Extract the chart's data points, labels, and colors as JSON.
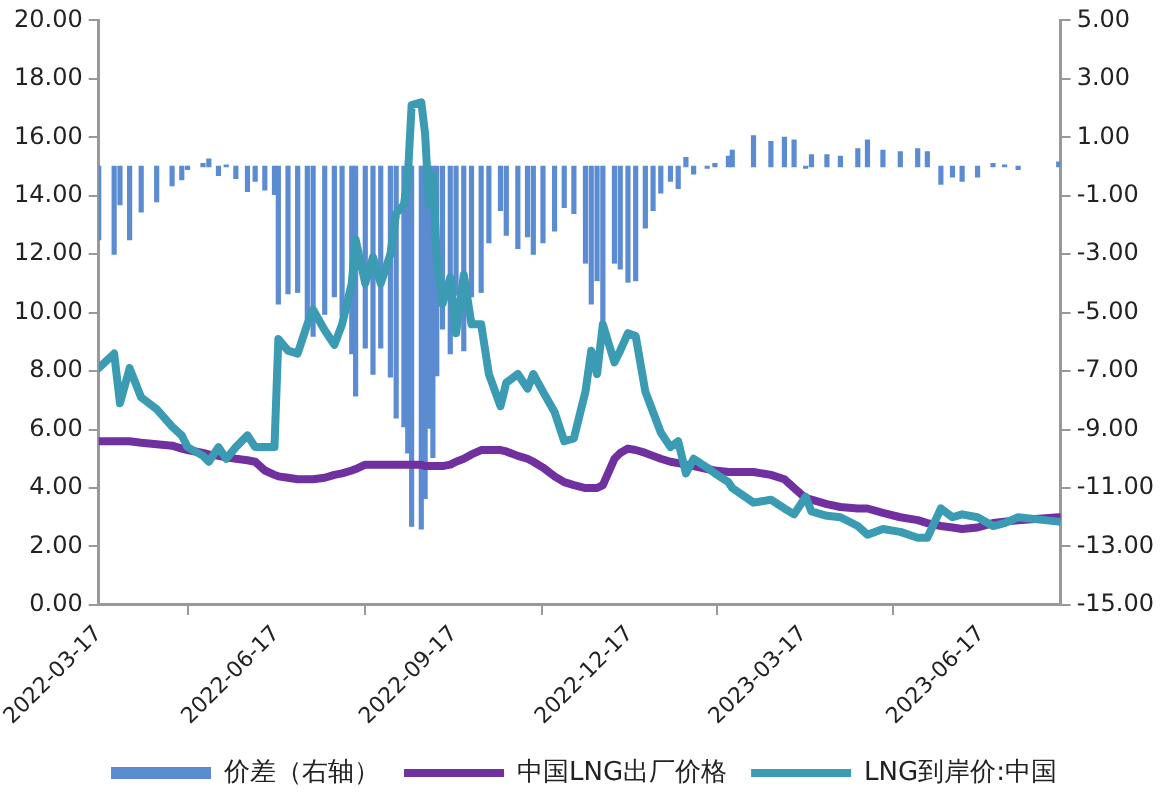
{
  "chart_data": {
    "type": "line",
    "x": [
      "2022-03-17",
      "2022-03-25",
      "2022-03-28",
      "2022-04-02",
      "2022-04-08",
      "2022-04-16",
      "2022-04-24",
      "2022-04-29",
      "2022-05-02",
      "2022-05-10",
      "2022-05-13",
      "2022-05-18",
      "2022-05-22",
      "2022-05-27",
      "2022-06-02",
      "2022-06-06",
      "2022-06-11",
      "2022-06-16",
      "2022-06-18",
      "2022-06-23",
      "2022-06-28",
      "2022-07-03",
      "2022-07-06",
      "2022-07-12",
      "2022-07-17",
      "2022-07-21",
      "2022-07-26",
      "2022-07-28",
      "2022-08-02",
      "2022-08-06",
      "2022-08-10",
      "2022-08-15",
      "2022-08-18",
      "2022-08-22",
      "2022-08-24",
      "2022-08-26",
      "2022-08-31",
      "2022-09-02",
      "2022-09-04",
      "2022-09-06",
      "2022-09-08",
      "2022-09-11",
      "2022-09-15",
      "2022-09-18",
      "2022-09-22",
      "2022-09-26",
      "2022-10-01",
      "2022-10-05",
      "2022-10-11",
      "2022-10-14",
      "2022-10-20",
      "2022-10-25",
      "2022-10-28",
      "2022-11-02",
      "2022-11-08",
      "2022-11-13",
      "2022-11-18",
      "2022-11-24",
      "2022-11-27",
      "2022-11-30",
      "2022-12-03",
      "2022-12-09",
      "2022-12-12",
      "2022-12-16",
      "2022-12-20",
      "2022-12-25",
      "2022-12-29",
      "2023-01-02",
      "2023-01-07",
      "2023-01-11",
      "2023-01-15",
      "2023-01-19",
      "2023-01-26",
      "2023-01-30",
      "2023-02-06",
      "2023-02-08",
      "2023-02-19",
      "2023-02-28",
      "2023-03-07",
      "2023-03-12",
      "2023-03-18",
      "2023-03-21",
      "2023-03-29",
      "2023-04-05",
      "2023-04-14",
      "2023-04-19",
      "2023-04-27",
      "2023-05-06",
      "2023-05-15",
      "2023-05-20",
      "2023-05-27",
      "2023-06-02",
      "2023-06-07",
      "2023-06-15",
      "2023-06-23",
      "2023-06-29",
      "2023-07-06",
      "2023-07-27"
    ],
    "series": [
      {
        "name": "价差（右轴）",
        "type": "bar",
        "axis": "y2",
        "color": "#5b8bd0",
        "values": [
          -2.5,
          -3.0,
          -1.3,
          -2.5,
          -1.55,
          -1.2,
          -0.65,
          -0.45,
          -0.1,
          0.1,
          0.25,
          -0.3,
          0.05,
          -0.4,
          -0.85,
          -0.5,
          -0.8,
          -0.95,
          -4.7,
          -4.35,
          -4.3,
          -5.3,
          -5.8,
          -5.05,
          -4.45,
          -5.1,
          -6.4,
          -7.85,
          -6.2,
          -7.1,
          -6.2,
          -7.2,
          -8.6,
          -8.9,
          -9.8,
          -12.3,
          -12.4,
          -11.35,
          -8.95,
          -9.95,
          -7.15,
          -5.55,
          -6.4,
          -4.4,
          -6.3,
          -4.45,
          -4.3,
          -2.6,
          -1.5,
          -2.35,
          -2.8,
          -2.4,
          -3.0,
          -2.6,
          -2.2,
          -1.4,
          -1.6,
          -3.3,
          -4.7,
          -3.9,
          -5.5,
          -3.3,
          -3.5,
          -3.95,
          -3.9,
          -2.1,
          -1.5,
          -0.9,
          -0.5,
          -0.75,
          0.3,
          -0.25,
          -0.05,
          0.1,
          0.35,
          0.55,
          1.05,
          0.85,
          1.0,
          0.9,
          -0.05,
          0.4,
          0.4,
          0.35,
          0.6,
          0.9,
          0.55,
          0.5,
          0.6,
          0.5,
          -0.6,
          -0.35,
          -0.5,
          -0.35,
          0.1,
          0.05,
          -0.1,
          0.15
        ]
      },
      {
        "name": "中国LNG出厂价格",
        "color": "#7030a0",
        "values": [
          5.6,
          5.6,
          5.6,
          5.6,
          5.55,
          5.5,
          5.45,
          5.35,
          5.3,
          5.2,
          5.15,
          5.1,
          5.05,
          5.0,
          4.95,
          4.9,
          4.6,
          4.45,
          4.4,
          4.35,
          4.3,
          4.3,
          4.3,
          4.35,
          4.45,
          4.5,
          4.6,
          4.65,
          4.8,
          4.8,
          4.8,
          4.8,
          4.8,
          4.8,
          4.8,
          4.8,
          4.8,
          4.75,
          4.75,
          4.75,
          4.75,
          4.75,
          4.8,
          4.9,
          5.0,
          5.15,
          5.3,
          5.3,
          5.3,
          5.25,
          5.1,
          5.0,
          4.9,
          4.7,
          4.4,
          4.2,
          4.1,
          4.0,
          4.0,
          4.0,
          4.1,
          5.0,
          5.2,
          5.35,
          5.3,
          5.2,
          5.1,
          5.0,
          4.9,
          4.85,
          4.8,
          4.75,
          4.65,
          4.6,
          4.55,
          4.55,
          4.55,
          4.45,
          4.3,
          4.0,
          3.65,
          3.6,
          3.45,
          3.35,
          3.3,
          3.3,
          3.15,
          3.0,
          2.9,
          2.8,
          2.7,
          2.65,
          2.6,
          2.65,
          2.8,
          2.85,
          2.9,
          3.0
        ]
      },
      {
        "name": "LNG到岸价:中国",
        "color": "#3a9bb2",
        "values": [
          8.1,
          8.6,
          6.9,
          8.1,
          7.1,
          6.7,
          6.1,
          5.8,
          5.4,
          5.1,
          4.9,
          5.4,
          5.0,
          5.4,
          5.8,
          5.4,
          5.4,
          5.4,
          9.1,
          8.7,
          8.6,
          9.6,
          10.1,
          9.4,
          8.9,
          9.6,
          11.0,
          12.5,
          11.0,
          11.9,
          11.0,
          12.0,
          13.4,
          13.7,
          14.6,
          17.1,
          17.2,
          16.1,
          13.7,
          14.7,
          11.9,
          10.3,
          11.2,
          9.3,
          11.3,
          9.6,
          9.6,
          7.9,
          6.8,
          7.6,
          7.9,
          7.4,
          7.9,
          7.3,
          6.6,
          5.6,
          5.7,
          7.3,
          8.7,
          7.9,
          9.6,
          8.3,
          8.7,
          9.3,
          9.2,
          7.3,
          6.6,
          5.9,
          5.4,
          5.6,
          4.5,
          5.0,
          4.7,
          4.5,
          4.2,
          4.0,
          3.5,
          3.6,
          3.3,
          3.1,
          3.7,
          3.2,
          3.05,
          3.0,
          2.7,
          2.4,
          2.6,
          2.5,
          2.3,
          2.3,
          3.3,
          3.0,
          3.1,
          3.0,
          2.7,
          2.8,
          3.0,
          2.85
        ]
      }
    ],
    "xlim": [
      "2022-03-17",
      "2023-07-28"
    ],
    "xticks": [
      "2022-03-17",
      "2022-06-17",
      "2022-09-17",
      "2022-12-17",
      "2023-03-17",
      "2023-06-17"
    ],
    "ylim": [
      0,
      20
    ],
    "yticks": [
      {
        "value": 0,
        "label": "0.00"
      },
      {
        "value": 2,
        "label": "2.00"
      },
      {
        "value": 4,
        "label": "4.00"
      },
      {
        "value": 6,
        "label": "6.00"
      },
      {
        "value": 8,
        "label": "8.00"
      },
      {
        "value": 10,
        "label": "10.00"
      },
      {
        "value": 12,
        "label": "12.00"
      },
      {
        "value": 14,
        "label": "14.00"
      },
      {
        "value": 16,
        "label": "16.00"
      },
      {
        "value": 18,
        "label": "18.00"
      },
      {
        "value": 20,
        "label": "20.00"
      }
    ],
    "y2lim": [
      -15,
      5
    ],
    "y2ticks": [
      {
        "value": -15,
        "label": "-15.00"
      },
      {
        "value": -13,
        "label": "-13.00"
      },
      {
        "value": -11,
        "label": "-11.00"
      },
      {
        "value": -9,
        "label": "-9.00"
      },
      {
        "value": -7,
        "label": "-7.00"
      },
      {
        "value": -5,
        "label": "-5.00"
      },
      {
        "value": -3,
        "label": "-3.00"
      },
      {
        "value": -1,
        "label": "-1.00"
      },
      {
        "value": 1,
        "label": "1.00"
      },
      {
        "value": 3,
        "label": "3.00"
      },
      {
        "value": 5,
        "label": "5.00"
      }
    ],
    "grid": false,
    "legend": "bottom",
    "marker": "none"
  }
}
